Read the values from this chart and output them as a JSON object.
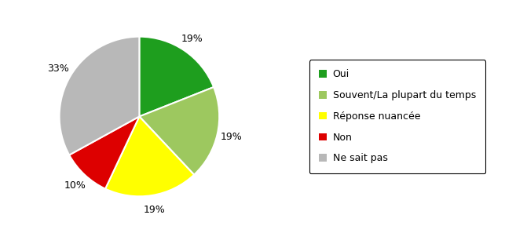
{
  "labels": [
    "Oui",
    "Souvent/La plupart du temps",
    "Réponse nuancée",
    "Non",
    "Ne sait pas"
  ],
  "values": [
    19,
    19,
    19,
    10,
    33
  ],
  "colors": [
    "#1e9e1e",
    "#9dc85f",
    "#ffff00",
    "#dd0000",
    "#b8b8b8"
  ],
  "pct_labels": [
    "19%",
    "19%",
    "19%",
    "10%",
    "33%"
  ],
  "legend_labels": [
    "Oui",
    "Souvent/La plupart du temps",
    "Réponse nuancée",
    "Non",
    "Ne sait pas"
  ],
  "startangle": 90,
  "figsize": [
    6.57,
    2.97
  ],
  "dpi": 100
}
